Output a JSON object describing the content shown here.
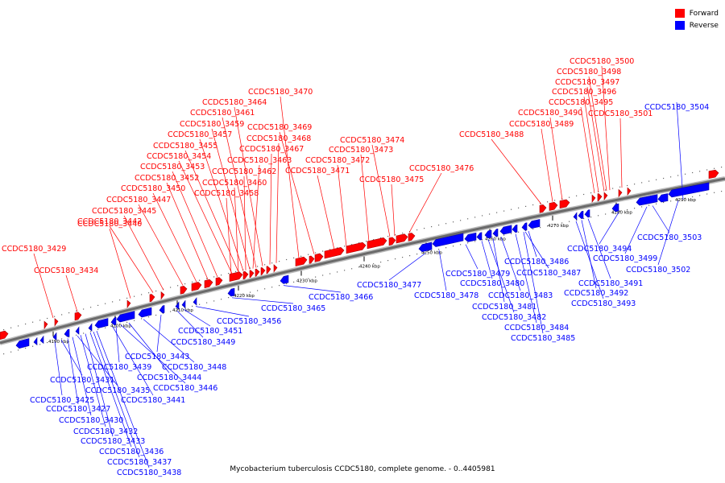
{
  "legend": {
    "items": [
      {
        "label": "Forward",
        "color": "#ff0000"
      },
      {
        "label": "Reverse",
        "color": "#0000ff"
      }
    ]
  },
  "caption": "Mycobacterium tuberculosis CCDC5180, complete genome. - 0..4405981",
  "colors": {
    "forward": "#ff0000",
    "reverse": "#0000ff",
    "axis": "#808080"
  },
  "ticks": [
    "4190 kbp",
    "4200 kbp",
    "4210 kbp",
    "4220 kbp",
    "4230 kbp",
    "4240 kbp",
    "4250 kbp",
    "4260 kbp",
    "4270 kbp",
    "4280 kbp",
    "4290 kbp"
  ],
  "forward_labels": [
    "CCDC5180_3429",
    "CCDC5180_3434",
    "CCDC5180_3440",
    "CCDC5180_3442",
    "CCDC5180_3445",
    "CCDC5180_3447",
    "CCDC5180_3450",
    "CCDC5180_3452",
    "CCDC5180_3453",
    "CCDC5180_3454",
    "CCDC5180_3455",
    "CCDC5180_3457",
    "CCDC5180_3459",
    "CCDC5180_3461",
    "CCDC5180_3464",
    "CCDC5180_3470",
    "CCDC5180_3458",
    "CCDC5180_3460",
    "CCDC5180_3462",
    "CCDC5180_3463",
    "CCDC5180_3467",
    "CCDC5180_3468",
    "CCDC5180_3469",
    "CCDC5180_3471",
    "CCDC5180_3472",
    "CCDC5180_3473",
    "CCDC5180_3474",
    "CCDC5180_3475",
    "CCDC5180_3476",
    "CCDC5180_3488",
    "CCDC5180_3489",
    "CCDC5180_3490",
    "CCDC5180_3495",
    "CCDC5180_3496",
    "CCDC5180_3497",
    "CCDC5180_3498",
    "CCDC5180_3500",
    "CCDC5180_3501"
  ],
  "reverse_labels": [
    "CCDC5180_3504",
    "CCDC5180_3503",
    "CCDC5180_3502",
    "CCDC5180_3499",
    "CCDC5180_3494",
    "CCDC5180_3491",
    "CCDC5180_3492",
    "CCDC5180_3493",
    "CCDC5180_3486",
    "CCDC5180_3487",
    "CCDC5180_3479",
    "CCDC5180_3480",
    "CCDC5180_3483",
    "CCDC5180_3481",
    "CCDC5180_3482",
    "CCDC5180_3484",
    "CCDC5180_3485",
    "CCDC5180_3477",
    "CCDC5180_3478",
    "CCDC5180_3466",
    "CCDC5180_3465",
    "CCDC5180_3456",
    "CCDC5180_3451",
    "CCDC5180_3449",
    "CCDC5180_3443",
    "CCDC5180_3448",
    "CCDC5180_3439",
    "CCDC5180_3444",
    "CCDC5180_3446",
    "CCDC5180_3441",
    "CCDC5180_3431",
    "CCDC5180_3435",
    "CCDC5180_3425",
    "CCDC5180_3427",
    "CCDC5180_3430",
    "CCDC5180_3432",
    "CCDC5180_3433",
    "CCDC5180_3436",
    "CCDC5180_3437",
    "CCDC5180_3438"
  ]
}
